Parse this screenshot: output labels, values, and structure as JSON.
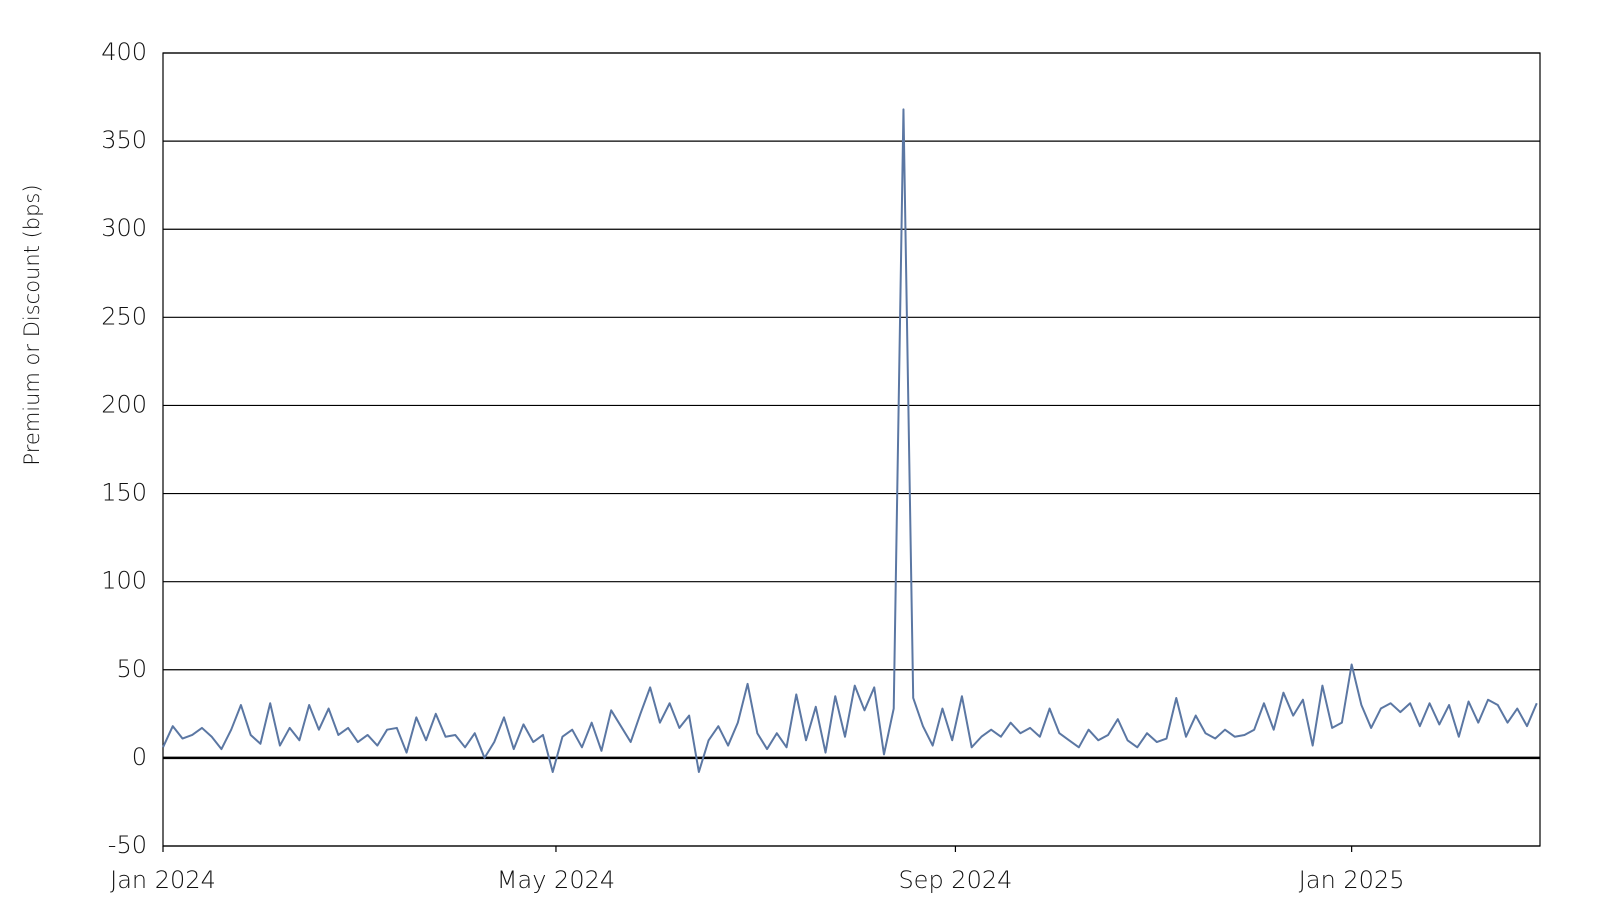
{
  "chart_data": {
    "type": "line",
    "ylabel": "Premium or Discount (bps)",
    "x": [
      0,
      3,
      6,
      9,
      12,
      15,
      18,
      21,
      24,
      27,
      30,
      33,
      36,
      39,
      42,
      45,
      48,
      51,
      54,
      57,
      60,
      63,
      66,
      69,
      72,
      75,
      78,
      81,
      84,
      87,
      90,
      93,
      96,
      99,
      102,
      105,
      108,
      111,
      114,
      117,
      120,
      123,
      126,
      129,
      132,
      135,
      138,
      141,
      144,
      147,
      150,
      153,
      156,
      159,
      162,
      165,
      168,
      171,
      174,
      177,
      180,
      183,
      186,
      189,
      192,
      195,
      198,
      201,
      204,
      207,
      210,
      213,
      216,
      219,
      222,
      225,
      228,
      231,
      234,
      237,
      240,
      243,
      246,
      249,
      252,
      255,
      258,
      261,
      264,
      267,
      270,
      273,
      276,
      279,
      282,
      285,
      288,
      291,
      294,
      297,
      300,
      303,
      306,
      309,
      312,
      315,
      318,
      321,
      324,
      327,
      330,
      333,
      336,
      339,
      342,
      345,
      348,
      351,
      354,
      357,
      360,
      363,
      366,
      369,
      372,
      375,
      378,
      381,
      384,
      387,
      390,
      393,
      396,
      399,
      402,
      405,
      408,
      411,
      414,
      417,
      420,
      423
    ],
    "series": [
      {
        "name": "Premium or Discount",
        "color": "#5b77a3",
        "values": [
          6,
          18,
          11,
          13,
          17,
          12,
          5,
          16,
          30,
          13,
          8,
          31,
          7,
          17,
          10,
          30,
          16,
          28,
          13,
          17,
          9,
          13,
          7,
          16,
          17,
          3,
          23,
          10,
          25,
          12,
          13,
          6,
          14,
          0,
          9,
          23,
          5,
          19,
          9,
          13,
          -8,
          12,
          16,
          6,
          20,
          4,
          27,
          18,
          9,
          25,
          40,
          20,
          31,
          17,
          24,
          -8,
          10,
          18,
          7,
          20,
          42,
          14,
          5,
          14,
          6,
          36,
          10,
          29,
          3,
          35,
          12,
          41,
          27,
          40,
          2,
          28,
          368,
          34,
          18,
          7,
          28,
          10,
          35,
          6,
          12,
          16,
          12,
          20,
          14,
          17,
          12,
          28,
          14,
          10,
          6,
          16,
          10,
          13,
          22,
          10,
          6,
          14,
          9,
          11,
          34,
          12,
          24,
          14,
          11,
          16,
          12,
          13,
          16,
          31,
          16,
          37,
          24,
          33,
          7,
          41,
          17,
          20,
          53,
          30,
          17,
          28,
          31,
          26,
          31,
          18,
          31,
          19,
          30,
          12,
          32,
          20,
          33,
          30,
          20,
          28,
          18,
          31
        ]
      }
    ],
    "xlim": [
      0,
      424
    ],
    "xticks": [
      {
        "value": 0,
        "label": "Jan 2024"
      },
      {
        "value": 121,
        "label": "May 2024"
      },
      {
        "value": 244,
        "label": "Sep 2024"
      },
      {
        "value": 366,
        "label": "Jan 2025"
      }
    ],
    "ylim": [
      -50,
      400
    ],
    "yticks": [
      -50,
      0,
      50,
      100,
      150,
      200,
      250,
      300,
      350,
      400
    ],
    "grid": true
  }
}
